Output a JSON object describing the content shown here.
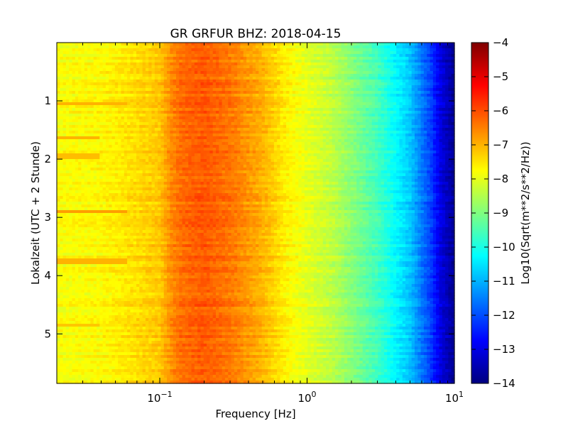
{
  "chart_data": {
    "type": "heatmap",
    "title": "GR GRFUR BHZ: 2018-04-15",
    "xlabel": "Frequency [Hz]",
    "ylabel": "Lokalzeit (UTC + 2 Stunde)",
    "xscale": "log",
    "xlim": [
      0.02,
      10
    ],
    "ylim": [
      0,
      5.85
    ],
    "y_inverted": true,
    "x_ticks": [
      {
        "value": 0.1,
        "base": "10",
        "exp": "−1"
      },
      {
        "value": 1,
        "base": "10",
        "exp": "0"
      },
      {
        "value": 10,
        "base": "10",
        "exp": "1"
      }
    ],
    "y_ticks": [
      1,
      2,
      3,
      4,
      5
    ],
    "colorbar": {
      "label": "Log10(Sqrt(m**2/s**2/Hz))",
      "colormap": "jet",
      "min": -14,
      "max": -4,
      "ticks": [
        -4,
        -5,
        -6,
        -7,
        -8,
        -9,
        -10,
        -11,
        -12,
        -13,
        -14
      ],
      "tick_labels": [
        "−4",
        "−5",
        "−6",
        "−7",
        "−8",
        "−9",
        "−10",
        "−11",
        "−12",
        "−13",
        "−14"
      ]
    },
    "spectrum_profile": {
      "frequency_hz": [
        0.02,
        0.04,
        0.06,
        0.1,
        0.12,
        0.14,
        0.2,
        0.3,
        0.5,
        0.7,
        1,
        1.5,
        2,
        3,
        5,
        7,
        8,
        10
      ],
      "log10_amplitude": [
        -7.8,
        -7.7,
        -7.5,
        -7.2,
        -6.6,
        -6.3,
        -6.1,
        -6.4,
        -7.0,
        -7.6,
        -8.0,
        -8.4,
        -8.9,
        -9.6,
        -10.8,
        -12.2,
        -13.0,
        -13.8
      ]
    },
    "events": [
      {
        "time_h": 1.05,
        "f_max_hz": 0.06,
        "log10_amplitude": -7.0
      },
      {
        "time_h": 1.65,
        "f_max_hz": 0.04,
        "log10_amplitude": -7.0
      },
      {
        "time_h": 1.95,
        "f_max_hz": 0.04,
        "log10_amplitude": -7.1
      },
      {
        "time_h": 2.9,
        "f_max_hz": 0.06,
        "log10_amplitude": -6.8
      },
      {
        "time_h": 3.75,
        "f_max_hz": 0.06,
        "log10_amplitude": -7.0
      },
      {
        "time_h": 4.85,
        "f_max_hz": 0.04,
        "log10_amplitude": -7.2
      }
    ]
  }
}
